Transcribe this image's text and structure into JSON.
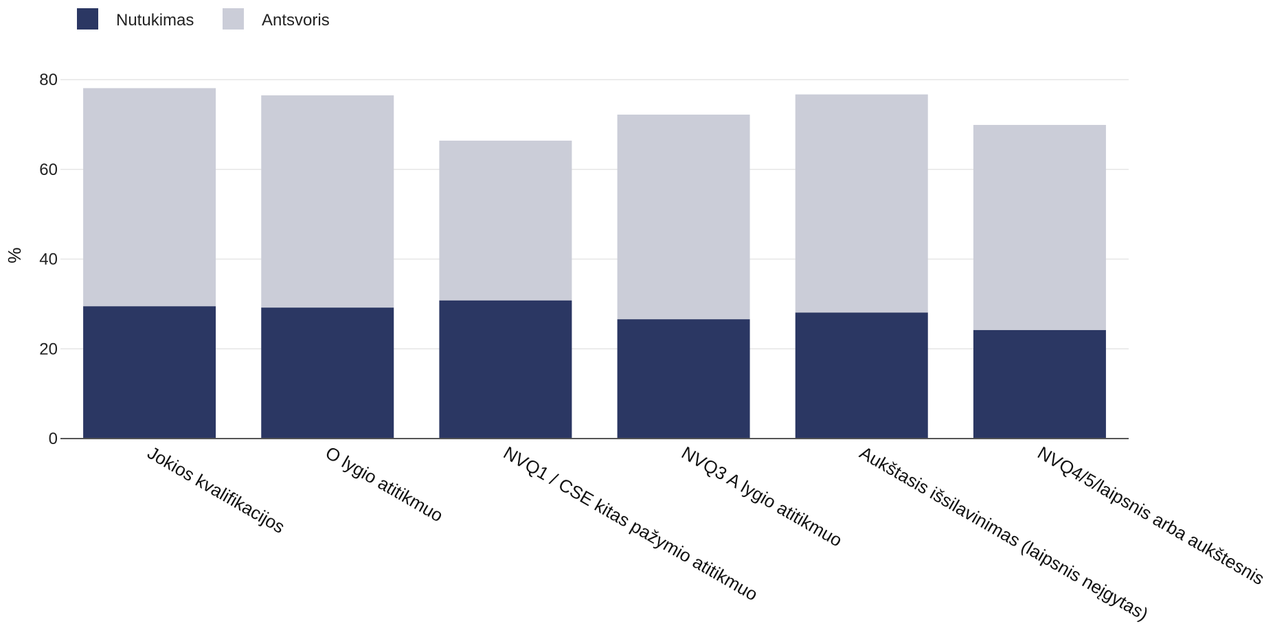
{
  "chart_data": {
    "type": "bar",
    "stacked": true,
    "categories": [
      "Jokios kvalifikacijos",
      "O lygio atitikmuo",
      "NVQ1 / CSE kitas pažymio atitikmuo",
      "NVQ3 A lygio atitikmuo",
      "Aukštasis išsilavinimas (laipsnis neįgytas)",
      "NVQ4/5/laipsnis arba aukštesnis"
    ],
    "series": [
      {
        "name": "Nutukimas",
        "color": "#2b3763",
        "values": [
          29.5,
          29.2,
          30.8,
          26.6,
          28.1,
          24.2
        ]
      },
      {
        "name": "Antsvoris",
        "color": "#cbcdd8",
        "values": [
          48.6,
          47.3,
          35.6,
          45.6,
          48.6,
          45.7
        ]
      }
    ],
    "title": "",
    "xlabel": "",
    "ylabel": "%",
    "ylim": [
      0,
      80
    ],
    "yticks": [
      0,
      20,
      40,
      60,
      80
    ],
    "grid": true,
    "legend_position": "top-left"
  }
}
